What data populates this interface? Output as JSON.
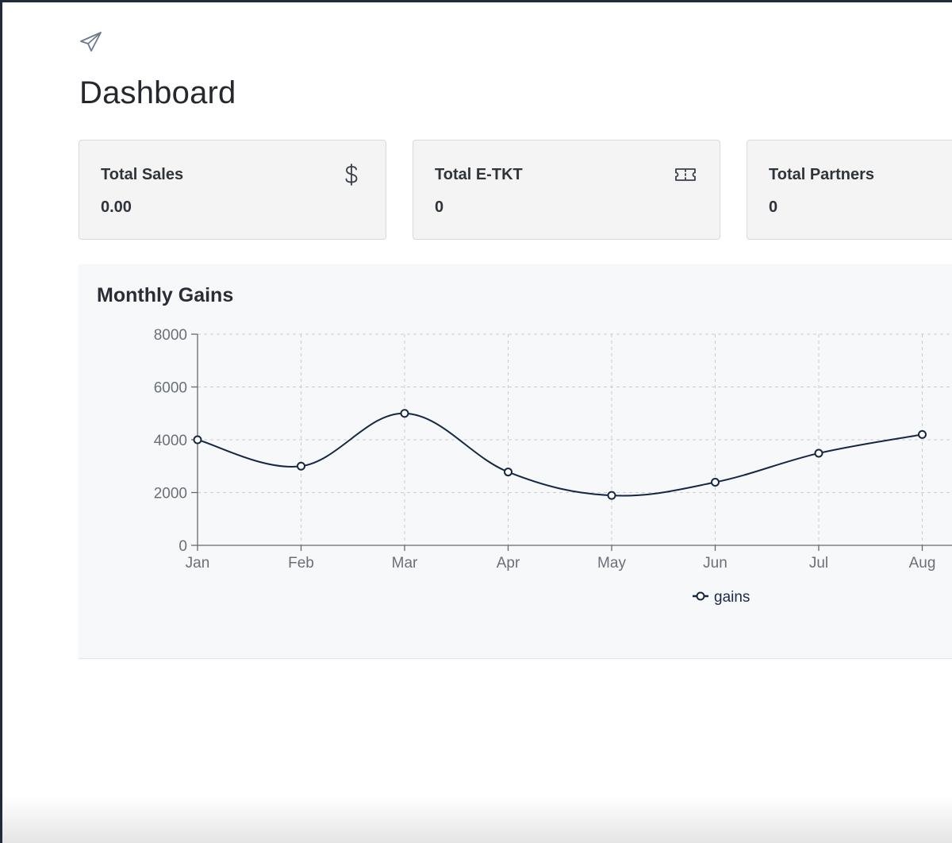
{
  "page": {
    "title": "Dashboard",
    "logo_icon": "paper-plane-icon"
  },
  "cards": [
    {
      "label": "Total Sales",
      "value": "0.00",
      "icon": "dollar-icon"
    },
    {
      "label": "Total E-TKT",
      "value": "0",
      "icon": "ticket-icon"
    },
    {
      "label": "Total Partners",
      "value": "0",
      "icon": ""
    }
  ],
  "chart": {
    "title": "Monthly Gains"
  },
  "chart_data": {
    "type": "line",
    "title": "Monthly Gains",
    "xlabel": "",
    "ylabel": "",
    "categories": [
      "Jan",
      "Feb",
      "Mar",
      "Apr",
      "May",
      "Jun",
      "Jul",
      "Aug"
    ],
    "series": [
      {
        "name": "gains",
        "values": [
          4000,
          3000,
          5000,
          2780,
          1890,
          2390,
          3490,
          4200
        ],
        "color": "#162744"
      }
    ],
    "ylim": [
      0,
      8000
    ],
    "yticks": [
      0,
      2000,
      4000,
      6000,
      8000
    ],
    "grid": true,
    "legend": "bottom-center",
    "curve": "smooth"
  }
}
